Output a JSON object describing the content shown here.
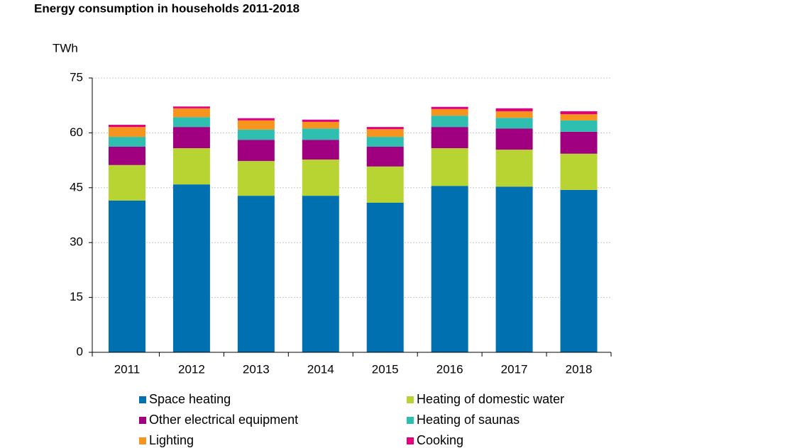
{
  "chart_data": {
    "type": "stacked_bar",
    "title": "Energy consumption in households 2011-2018",
    "y_label": "TWh",
    "categories": [
      "2011",
      "2012",
      "2013",
      "2014",
      "2015",
      "2016",
      "2017",
      "2018"
    ],
    "series": [
      {
        "name": "Space heating",
        "color": "#0070b0",
        "values": [
          41.5,
          45.9,
          42.8,
          42.8,
          40.9,
          45.5,
          45.3,
          44.4
        ]
      },
      {
        "name": "Heating of domestic water",
        "color": "#b8d432",
        "values": [
          9.7,
          9.9,
          9.5,
          9.9,
          9.9,
          10.3,
          10.1,
          9.9
        ]
      },
      {
        "name": "Other electrical equipment",
        "color": "#a0007f",
        "values": [
          5.0,
          5.8,
          5.8,
          5.4,
          5.4,
          5.8,
          5.8,
          6.0
        ]
      },
      {
        "name": "Heating of saunas",
        "color": "#2ebfb1",
        "values": [
          2.7,
          2.7,
          2.8,
          3.1,
          2.7,
          3.1,
          2.9,
          3.1
        ]
      },
      {
        "name": "Lighting",
        "color": "#f7941d",
        "values": [
          2.7,
          2.4,
          2.5,
          1.8,
          2.1,
          1.8,
          1.8,
          1.7
        ]
      },
      {
        "name": "Cooking",
        "color": "#e4007c",
        "values": [
          0.6,
          0.5,
          0.6,
          0.6,
          0.6,
          0.6,
          0.8,
          0.8
        ]
      }
    ],
    "ylim": [
      0,
      75
    ],
    "yticks": [
      0,
      15,
      30,
      45,
      60,
      75
    ],
    "grid": true
  }
}
